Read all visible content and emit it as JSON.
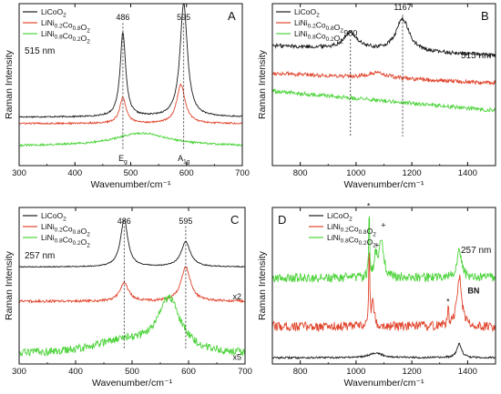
{
  "colors": {
    "black": "#1a1a1a",
    "red": "#e0452d",
    "green": "#4cd33a"
  },
  "chart_data": [
    {
      "type": "line",
      "panel": "A",
      "xlabel": "Wavenumber/cm⁻¹",
      "ylabel": "Raman Intensity",
      "xlim": [
        300,
        700
      ],
      "xticks": [
        300,
        400,
        500,
        600,
        700
      ],
      "wavelength": "515 nm",
      "legend": [
        "LiCoO2",
        "LiNi0.2Co0.8O2",
        "LiNi0.8Co0.2O2"
      ],
      "legend_position": "top-left",
      "series": [
        {
          "name": "LiCoO2",
          "offset": 0.3,
          "peaks": [
            [
              486,
              0.52,
              6
            ],
            [
              595,
              0.7,
              8
            ]
          ],
          "noise": 0.004
        },
        {
          "name": "LiNi0.2Co0.8O2",
          "offset": 0.26,
          "peaks": [
            [
              486,
              0.16,
              7
            ],
            [
              590,
              0.24,
              9
            ]
          ],
          "noise": 0.005
        },
        {
          "name": "LiNi0.8Co0.2O2",
          "offset": 0.12,
          "peaks": [
            [
              520,
              0.08,
              60
            ]
          ],
          "noise": 0.006
        }
      ],
      "peak_labels": [
        {
          "x": 486,
          "text": "486"
        },
        {
          "x": 595,
          "text": "595"
        }
      ],
      "band_labels": [
        {
          "x": 486,
          "text": "Eg"
        },
        {
          "x": 595,
          "text": "A1g"
        }
      ]
    },
    {
      "type": "line",
      "panel": "B",
      "xlabel": "Wavenumber/cm⁻¹",
      "ylabel": "Raman Intensity",
      "xlim": [
        700,
        1500
      ],
      "xticks": [
        800,
        1000,
        1200,
        1400
      ],
      "wavelength": "515 nm",
      "legend": [
        "LiCoO2",
        "LiNi0.2Co0.8O2",
        "LiNi0.8Co0.2O2"
      ],
      "legend_position": "top-left",
      "series": [
        {
          "name": "LiCoO2",
          "offset": 0.74,
          "slope": -0.06,
          "peaks": [
            [
              980,
              0.1,
              30
            ],
            [
              1167,
              0.2,
              28
            ]
          ],
          "noise": 0.012
        },
        {
          "name": "LiNi0.2Co0.8O2",
          "offset": 0.57,
          "slope": -0.06,
          "peaks": [
            [
              1080,
              0.03,
              40
            ]
          ],
          "noise": 0.012
        },
        {
          "name": "LiNi0.8Co0.2O2",
          "offset": 0.46,
          "slope": -0.12,
          "peaks": [],
          "noise": 0.012
        }
      ],
      "peak_labels": [
        {
          "x": 980,
          "text": "980"
        },
        {
          "x": 1167,
          "text": "1167"
        }
      ]
    },
    {
      "type": "line",
      "panel": "C",
      "xlabel": "Wavenumber/cm⁻¹",
      "ylabel": "Raman Intensity",
      "xlim": [
        300,
        700
      ],
      "xticks": [
        300,
        400,
        500,
        600,
        700
      ],
      "wavelength": "257 nm",
      "legend": [
        "LiCoO2",
        "LiNi0.2Co0.8O2",
        "LiNi0.8Co0.2O2"
      ],
      "legend_position": "top-left",
      "series": [
        {
          "name": "LiCoO2",
          "offset": 0.62,
          "peaks": [
            [
              486,
              0.3,
              8
            ],
            [
              595,
              0.16,
              10
            ]
          ],
          "noise": 0.003
        },
        {
          "name": "LiNi0.2Co0.8O2",
          "offset": 0.4,
          "peaks": [
            [
              486,
              0.12,
              9
            ],
            [
              595,
              0.22,
              10
            ]
          ],
          "noise": 0.008
        },
        {
          "name": "LiNi0.8Co0.2O2",
          "offset": 0.06,
          "slope": 0.0,
          "peaks": [
            [
              480,
              0.08,
              60
            ],
            [
              565,
              0.34,
              25
            ]
          ],
          "noise": 0.025
        }
      ],
      "peak_labels": [
        {
          "x": 486,
          "text": "486"
        },
        {
          "x": 595,
          "text": "595"
        }
      ],
      "scale_labels": [
        {
          "series": 1,
          "text": "x2"
        },
        {
          "series": 2,
          "text": "x5"
        }
      ]
    },
    {
      "type": "line",
      "panel": "D",
      "xlabel": "Wavenumber/cm⁻¹",
      "ylabel": "Raman Intensity",
      "xlim": [
        700,
        1500
      ],
      "xticks": [
        800,
        1000,
        1200,
        1400
      ],
      "wavelength": "257 nm",
      "legend": [
        "LiCoO2",
        "LiNi0.2Co0.8O2",
        "LiNi0.8Co0.2O2"
      ],
      "legend_position": "top-left",
      "series": [
        {
          "name": "LiCoO2",
          "offset": 0.04,
          "peaks": [
            [
              1070,
              0.03,
              30
            ],
            [
              1370,
              0.09,
              10
            ]
          ],
          "noise": 0.006
        },
        {
          "name": "LiNi0.2Co0.8O2",
          "offset": 0.24,
          "peaks": [
            [
              1047,
              0.52,
              2
            ],
            [
              1060,
              0.15,
              6
            ],
            [
              1330,
              0.14,
              2
            ],
            [
              1370,
              0.32,
              10
            ]
          ],
          "noise": 0.03
        },
        {
          "name": "LiNi0.8Co0.2O2",
          "offset": 0.55,
          "peaks": [
            [
              1047,
              0.44,
              2
            ],
            [
              1070,
              0.13,
              5
            ],
            [
              1090,
              0.26,
              10
            ],
            [
              1370,
              0.18,
              10
            ]
          ],
          "noise": 0.03
        }
      ],
      "markers": [
        {
          "x": 1045,
          "y": 0.99,
          "text": "*"
        },
        {
          "x": 1075,
          "y": 0.74,
          "text": "+"
        },
        {
          "x": 1098,
          "y": 0.87,
          "text": "+"
        },
        {
          "x": 1330,
          "y": 0.38,
          "text": "*"
        }
      ],
      "annotation": {
        "x": 1400,
        "y": 0.45,
        "text": "BN"
      }
    }
  ]
}
